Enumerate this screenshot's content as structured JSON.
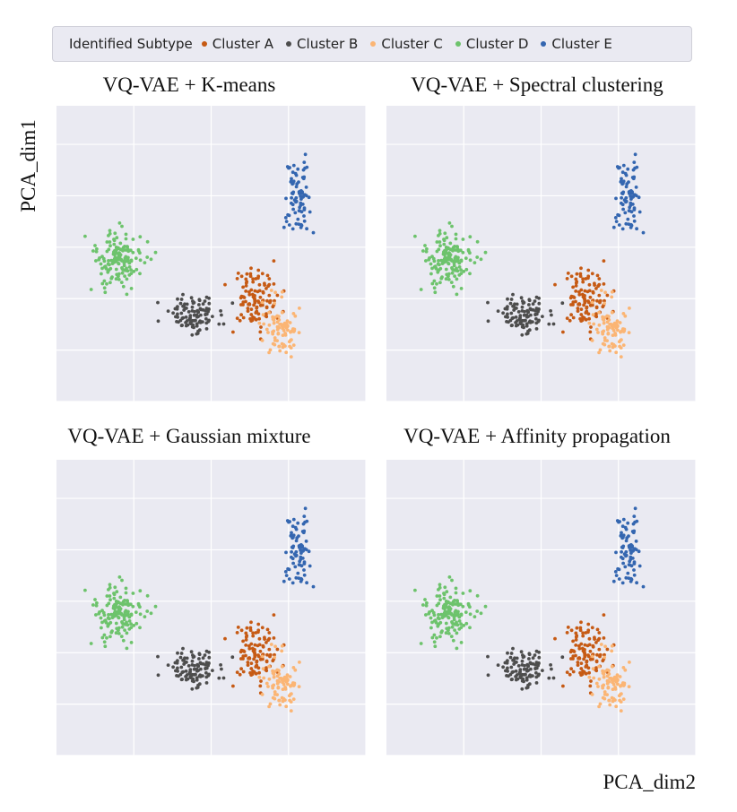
{
  "chart_data": {
    "type": "scatter",
    "xlabel": "PCA_dim2",
    "ylabel": "PCA_dim1",
    "xlim": [
      -4,
      12
    ],
    "ylim": [
      -6,
      5.5
    ],
    "grid": true,
    "legend_position": "top",
    "legend": {
      "title": "Identified Subtype",
      "entries": [
        {
          "name": "Cluster A",
          "color": "#c65a14"
        },
        {
          "name": "Cluster B",
          "color": "#4d4d4d"
        },
        {
          "name": "Cluster C",
          "color": "#fbb574"
        },
        {
          "name": "Cluster D",
          "color": "#6dc36c"
        },
        {
          "name": "Cluster E",
          "color": "#3466b0"
        }
      ]
    },
    "clusters": [
      {
        "name": "Cluster A",
        "color": "#c65a14",
        "center": [
          6.3,
          -2.0
        ],
        "spread": [
          1.1,
          1.1
        ],
        "n": 110
      },
      {
        "name": "Cluster B",
        "color": "#4d4d4d",
        "center": [
          3.0,
          -2.6
        ],
        "spread": [
          1.3,
          0.6
        ],
        "n": 105
      },
      {
        "name": "Cluster C",
        "color": "#fbb574",
        "center": [
          7.6,
          -3.2
        ],
        "spread": [
          0.8,
          1.0
        ],
        "n": 85
      },
      {
        "name": "Cluster D",
        "color": "#6dc36c",
        "center": [
          -0.8,
          -0.5
        ],
        "spread": [
          1.2,
          1.0
        ],
        "n": 150
      },
      {
        "name": "Cluster E",
        "color": "#3466b0",
        "center": [
          8.5,
          2.0
        ],
        "spread": [
          0.6,
          1.3
        ],
        "n": 80
      }
    ],
    "panels": [
      {
        "title": "VQ-VAE  + K-means"
      },
      {
        "title": "VQ-VAE  + Spectral clustering"
      },
      {
        "title": "VQ-VAE  + Gaussian mixture"
      },
      {
        "title": "VQ-VAE + Affinity propagation"
      }
    ]
  }
}
